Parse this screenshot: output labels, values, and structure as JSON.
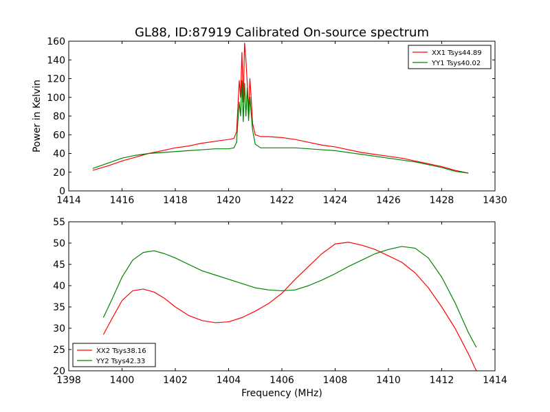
{
  "figure": {
    "title": "GL88, ID:87919 Calibrated On-source spectrum",
    "colors": {
      "red": "#ff0000",
      "green": "#008000"
    }
  },
  "chart_data": [
    {
      "type": "line",
      "ylabel": "Power in Kelvin",
      "xlabel": "",
      "xlim": [
        1414,
        1430
      ],
      "ylim": [
        0,
        160
      ],
      "xticks": [
        "1414",
        "1416",
        "1418",
        "1420",
        "1422",
        "1424",
        "1426",
        "1428",
        "1430"
      ],
      "yticks": [
        "0",
        "20",
        "40",
        "60",
        "80",
        "100",
        "120",
        "140",
        "160"
      ],
      "legend_position": "top-right",
      "grid": false,
      "series": [
        {
          "name": "XX1 Tsys44.89",
          "color": "#ff0000",
          "x": [
            14.9,
            15.5,
            16,
            16.5,
            17,
            17.5,
            18,
            18.5,
            19,
            19.5,
            20,
            20.2,
            20.3,
            20.35,
            20.4,
            20.45,
            20.5,
            20.55,
            20.6,
            20.65,
            20.7,
            20.75,
            20.8,
            20.85,
            20.9,
            21,
            21.2,
            21.5,
            22,
            22.5,
            23,
            23.5,
            24,
            24.5,
            25,
            25.5,
            26,
            26.5,
            27,
            27.5,
            28,
            28.5,
            29
          ],
          "y": [
            22,
            27,
            32,
            36,
            40,
            43,
            46,
            48,
            51,
            53,
            55,
            56,
            63,
            90,
            118,
            100,
            148,
            95,
            158,
            140,
            115,
            85,
            120,
            98,
            72,
            60,
            58,
            58,
            57,
            55,
            52,
            49,
            47,
            44,
            41,
            39,
            37,
            35,
            32,
            29,
            26,
            22,
            19
          ]
        },
        {
          "name": "YY1 Tsys40.02",
          "color": "#008000",
          "x": [
            14.9,
            15.5,
            16,
            16.5,
            17,
            17.5,
            18,
            18.5,
            19,
            19.5,
            20,
            20.2,
            20.3,
            20.35,
            20.4,
            20.45,
            20.5,
            20.55,
            20.6,
            20.65,
            20.7,
            20.75,
            20.8,
            20.85,
            20.9,
            21,
            21.2,
            21.5,
            22,
            22.5,
            23,
            23.5,
            24,
            24.5,
            25,
            25.5,
            26,
            26.5,
            27,
            27.5,
            28,
            28.5,
            29
          ],
          "y": [
            24,
            30,
            35,
            38,
            40,
            41,
            42,
            43,
            44,
            45,
            45,
            46,
            52,
            75,
            95,
            80,
            118,
            74,
            115,
            80,
            110,
            75,
            100,
            82,
            65,
            50,
            46,
            46,
            46,
            46,
            45,
            44,
            43,
            41,
            39,
            37,
            35,
            33,
            31,
            28,
            25,
            21,
            19
          ]
        }
      ]
    },
    {
      "type": "line",
      "ylabel": "",
      "xlabel": "Frequency (MHz)",
      "xlim": [
        1398,
        1414
      ],
      "ylim": [
        20,
        55
      ],
      "xticks": [
        "1398",
        "1400",
        "1402",
        "1404",
        "1406",
        "1408",
        "1410",
        "1412",
        "1414"
      ],
      "yticks": [
        "20",
        "25",
        "30",
        "35",
        "40",
        "45",
        "50",
        "55"
      ],
      "legend_position": "lower-left",
      "grid": false,
      "series": [
        {
          "name": "XX2 Tsys38.16",
          "color": "#ff0000",
          "x": [
            1399.3,
            1399.6,
            1400,
            1400.4,
            1400.8,
            1401.2,
            1401.6,
            1402,
            1402.5,
            1403,
            1403.5,
            1404,
            1404.5,
            1405,
            1405.5,
            1406,
            1406.5,
            1407,
            1407.5,
            1408,
            1408.5,
            1409,
            1409.5,
            1410,
            1410.5,
            1411,
            1411.5,
            1412,
            1412.5,
            1413,
            1413.3
          ],
          "y": [
            28.5,
            32,
            36.5,
            38.8,
            39.2,
            38.5,
            37,
            35,
            33,
            31.8,
            31.3,
            31.5,
            32.5,
            34,
            35.8,
            38.2,
            41.5,
            44.5,
            47.5,
            49.8,
            50.2,
            49.5,
            48.5,
            47,
            45.5,
            43,
            39.5,
            35,
            30,
            24,
            20
          ]
        },
        {
          "name": "YY2 Tsys42.33",
          "color": "#008000",
          "x": [
            1399.3,
            1399.6,
            1400,
            1400.4,
            1400.8,
            1401.2,
            1401.6,
            1402,
            1402.5,
            1403,
            1403.5,
            1404,
            1404.5,
            1405,
            1405.5,
            1406,
            1406.5,
            1407,
            1407.5,
            1408,
            1408.5,
            1409,
            1409.5,
            1410,
            1410.5,
            1411,
            1411.5,
            1412,
            1412.5,
            1413,
            1413.3
          ],
          "y": [
            32.5,
            36.5,
            42,
            46,
            47.8,
            48.2,
            47.5,
            46.5,
            45,
            43.5,
            42.5,
            41.5,
            40.5,
            39.5,
            39,
            38.8,
            39,
            40,
            41.3,
            42.8,
            44.5,
            46,
            47.5,
            48.5,
            49.2,
            48.8,
            46.5,
            42,
            36,
            29,
            25.5
          ]
        }
      ]
    }
  ]
}
